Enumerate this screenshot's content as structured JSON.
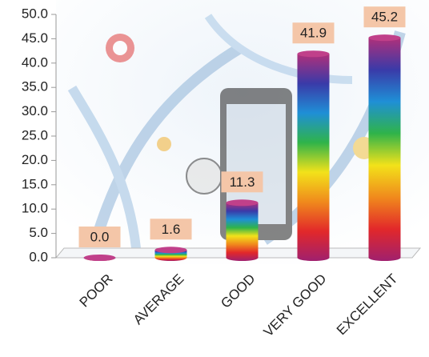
{
  "chart_data": {
    "type": "bar",
    "categories": [
      "POOR",
      "AVERAGE",
      "GOOD",
      "VERY GOOD",
      "EXCELLENT"
    ],
    "values": [
      0.0,
      1.6,
      11.3,
      41.9,
      45.2
    ],
    "value_labels": [
      "0.0",
      "1.6",
      "11.3",
      "41.9",
      "45.2"
    ],
    "gradient": [
      "#b0307a",
      "#3a3aa8",
      "#1f8fd6",
      "#2fb34a",
      "#f2e21a",
      "#f08a1c",
      "#e2282a",
      "#a0206e"
    ],
    "ylim": [
      0,
      50
    ],
    "yticks": [
      {
        "value": 0,
        "label": "0.0"
      },
      {
        "value": 5,
        "label": "5.0"
      },
      {
        "value": 10,
        "label": "10.0"
      },
      {
        "value": 15,
        "label": "15.0"
      },
      {
        "value": 20,
        "label": "20.0"
      },
      {
        "value": 25,
        "label": "25.0"
      },
      {
        "value": 30,
        "label": "30.0"
      },
      {
        "value": 35,
        "label": "35.0"
      },
      {
        "value": 40,
        "label": "40.0"
      },
      {
        "value": 45,
        "label": "45.0"
      },
      {
        "value": 50,
        "label": "50.0"
      }
    ],
    "grid": false
  }
}
